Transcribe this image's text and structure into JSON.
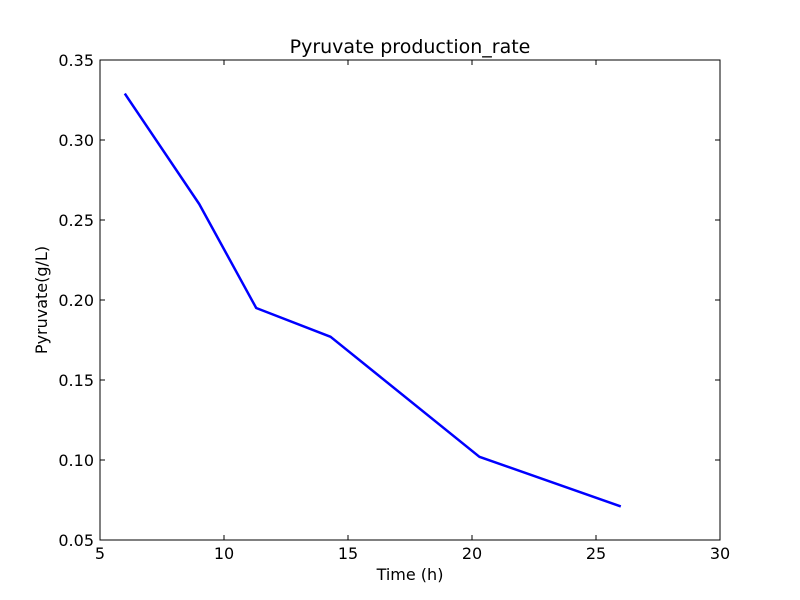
{
  "chart_data": {
    "type": "line",
    "title": "Pyruvate production_rate",
    "xlabel": "Time (h)",
    "ylabel": "Pyruvate(g/L)",
    "xlim": [
      5,
      30
    ],
    "ylim": [
      0.05,
      0.35
    ],
    "x_ticks": [
      5,
      10,
      15,
      20,
      25,
      30
    ],
    "y_ticks": [
      0.05,
      0.1,
      0.15,
      0.2,
      0.25,
      0.3,
      0.35
    ],
    "x_tick_labels": [
      "5",
      "10",
      "15",
      "20",
      "25",
      "30"
    ],
    "y_tick_labels": [
      "0.05",
      "0.10",
      "0.15",
      "0.20",
      "0.25",
      "0.30",
      "0.35"
    ],
    "grid": false,
    "series": [
      {
        "color": "#0000ff",
        "x": [
          6.0,
          9.0,
          11.3,
          14.3,
          20.3,
          26.0
        ],
        "y": [
          0.329,
          0.26,
          0.195,
          0.177,
          0.102,
          0.071
        ]
      }
    ]
  }
}
